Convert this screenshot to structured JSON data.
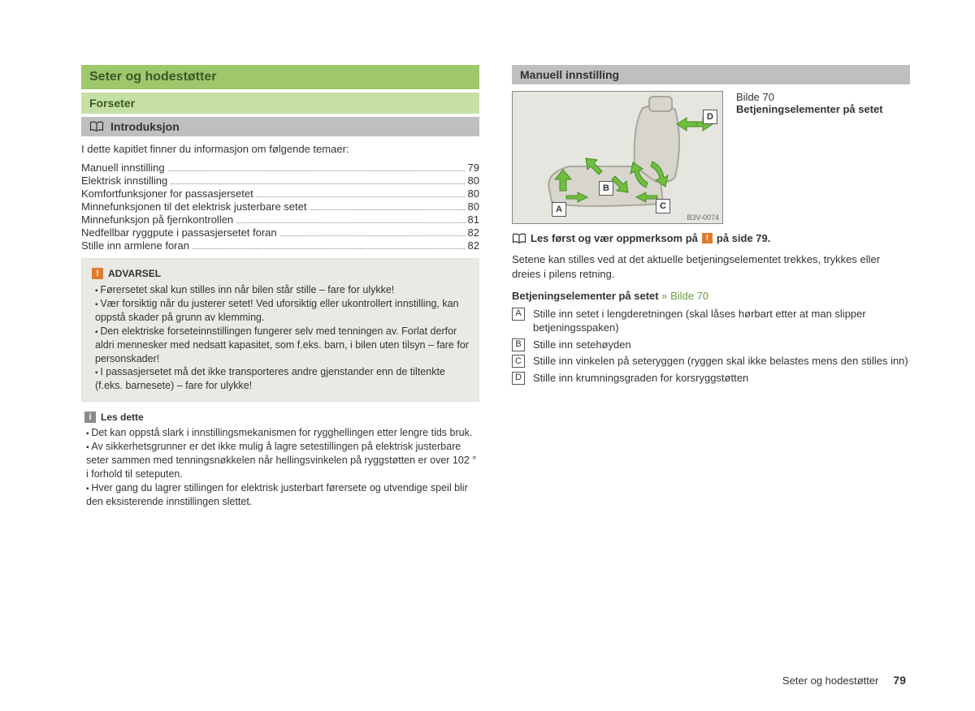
{
  "colors": {
    "header_green_dark_bg": "#9fc76b",
    "header_green_light_bg": "#c5dfa4",
    "header_grey_bg": "#bfbfbf",
    "warn_bg": "#e9eae4",
    "icon_orange": "#e07b2e",
    "icon_grey": "#8a8a8a",
    "link_green": "#6b9e3e",
    "arrow_green": "#6fbf3f",
    "seat_fill": "#d8d6cc"
  },
  "left": {
    "h1": "Seter og hodestøtter",
    "h2": "Forseter",
    "h3": "Introduksjon",
    "intro": "I dette kapitlet finner du informasjon om følgende temaer:",
    "toc": [
      {
        "label": "Manuell innstilling",
        "page": "79"
      },
      {
        "label": "Elektrisk innstilling",
        "page": "80"
      },
      {
        "label": "Komfortfunksjoner for passasjersetet",
        "page": "80"
      },
      {
        "label": "Minnefunksjonen til det elektrisk justerbare setet",
        "page": "80"
      },
      {
        "label": "Minnefunksjon på fjernkontrollen",
        "page": "81"
      },
      {
        "label": "Nedfellbar ryggpute i passasjersetet foran",
        "page": "82"
      },
      {
        "label": "Stille inn armlene foran",
        "page": "82"
      }
    ],
    "warn": {
      "icon": "!",
      "title": "ADVARSEL",
      "items": [
        "Førersetet skal kun stilles inn når bilen står stille – fare for ulykke!",
        "Vær forsiktig når du justerer setet! Ved uforsiktig eller ukontrollert innstilling, kan oppstå skader på grunn av klemming.",
        "Den elektriske forseteinnstillingen fungerer selv med tenningen av. Forlat derfor aldri mennesker med nedsatt kapasitet, som f.eks. barn, i bilen uten tilsyn – fare for personskader!",
        "I passasjersetet må det ikke transporteres andre gjenstander enn de tiltenkte (f.eks. barnesete) – fare for ulykke!"
      ]
    },
    "note": {
      "icon": "i",
      "title": "Les dette",
      "items": [
        "Det kan oppstå slark i innstillingsmekanismen for rygghellingen etter lengre tids bruk.",
        "Av sikkerhetsgrunner er det ikke mulig å lagre setestillingen på elektrisk justerbare seter sammen med tenningsnøkkelen når hellingsvinkelen på ryggstøtten er over 102 ° i forhold til seteputen.",
        "Hver gang du lagrer stillingen for elektrisk justerbart førersete og utvendige speil blir den eksisterende innstillingen slettet."
      ]
    }
  },
  "right": {
    "h3": "Manuell innstilling",
    "figure": {
      "num": "Bilde 70",
      "caption": "Betjeningselementer på setet",
      "labels": [
        "A",
        "B",
        "C",
        "D"
      ],
      "code": "B3V-0074"
    },
    "ref_prefix": "Les først og vær oppmerksom på",
    "ref_icon": "!",
    "ref_suffix": "på side 79.",
    "body1": "Setene kan stilles ved at det aktuelle betjeningselementet trekkes, trykkes eller dreies i pilens retning.",
    "controls_title_a": "Betjeningselementer på setet",
    "controls_title_b": "» Bilde 70",
    "controls": [
      {
        "key": "A",
        "text": "Stille inn setet i lengderetningen (skal låses hørbart etter at man slipper betjeningsspaken)"
      },
      {
        "key": "B",
        "text": "Stille inn setehøyden"
      },
      {
        "key": "C",
        "text": "Stille inn vinkelen på seteryggen (ryggen skal ikke belastes mens den stilles inn)"
      },
      {
        "key": "D",
        "text": "Stille inn krumningsgraden for korsryggstøtten"
      }
    ]
  },
  "footer": {
    "section": "Seter og hodestøtter",
    "page": "79"
  }
}
